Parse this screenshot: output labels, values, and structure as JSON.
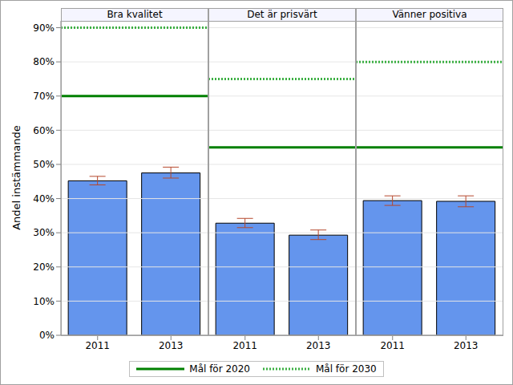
{
  "chart_data": {
    "type": "bar",
    "y_label": "Andel instämmande",
    "color": "#6495ed",
    "error_color": "#b5482d",
    "ylim": [
      0,
      92
    ],
    "yticks": [
      {
        "value": 0,
        "label": "0%"
      },
      {
        "value": 10,
        "label": "10%"
      },
      {
        "value": 20,
        "label": "20%"
      },
      {
        "value": 30,
        "label": "30%"
      },
      {
        "value": 40,
        "label": "40%"
      },
      {
        "value": 50,
        "label": "50%"
      },
      {
        "value": 60,
        "label": "60%"
      },
      {
        "value": 70,
        "label": "70%"
      },
      {
        "value": 80,
        "label": "80%"
      },
      {
        "value": 90,
        "label": "90%"
      }
    ],
    "grid": true,
    "legend": "bottom",
    "panels": [
      {
        "title": "Bra kvalitet",
        "categories": [
          "2011",
          "2013"
        ],
        "values": [
          45.2,
          47.5
        ],
        "error_low": [
          44.0,
          46.0
        ],
        "error_high": [
          46.5,
          49.2
        ]
      },
      {
        "title": "Det är prisvärt",
        "categories": [
          "2011",
          "2013"
        ],
        "values": [
          32.8,
          29.3
        ],
        "error_low": [
          31.5,
          28.0
        ],
        "error_high": [
          34.2,
          30.8
        ]
      },
      {
        "title": "Vänner positiva",
        "categories": [
          "2011",
          "2013"
        ],
        "values": [
          39.4,
          39.2
        ],
        "error_low": [
          38.0,
          37.6
        ],
        "error_high": [
          40.8,
          40.8
        ]
      }
    ],
    "reference_lines": [
      {
        "name": "Mål för 2020",
        "color": "#008000",
        "line_style": "solid",
        "values": [
          70,
          55,
          55
        ]
      },
      {
        "name": "Mål för 2030",
        "color": "#3cb043",
        "line_style": "dotted",
        "values": [
          90,
          75,
          80
        ]
      }
    ]
  }
}
